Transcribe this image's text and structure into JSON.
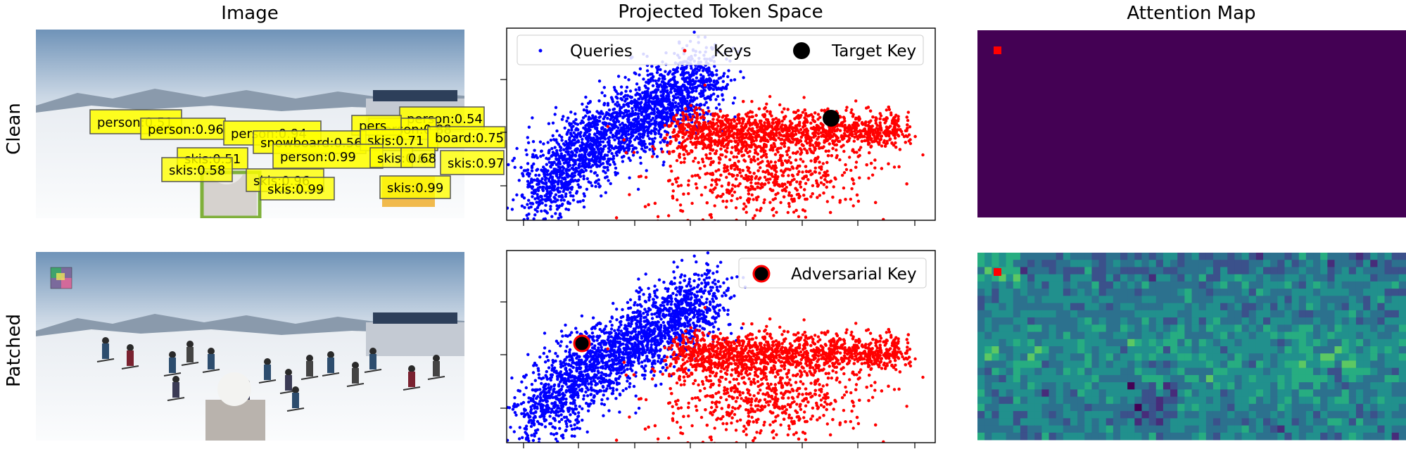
{
  "columns": {
    "image": "Image",
    "projected": "Projected Token Space",
    "attention": "Attention Map"
  },
  "rows": {
    "clean": "Clean",
    "patched": "Patched"
  },
  "legend": {
    "queries": "Queries",
    "keys": "Keys",
    "target_key": "Target Key",
    "adversarial_key": "Adversarial Key"
  },
  "detections": [
    "person:0.51",
    "person:0.96",
    "person:0.94",
    "person:0.54",
    "person:0.88",
    "pers",
    "snowboard:0.56",
    "skis:0.71",
    "board:0.75",
    "person:0.99",
    "skis:0.51",
    "skis:0.58",
    "skis:0.96",
    "skis:0.99",
    "skis:0.97",
    "skis:0.99",
    "skis:0.62",
    "0.68"
  ],
  "colors": {
    "queries": "#0000ff",
    "keys": "#ff0000",
    "target_key": "#000000",
    "attention_bg": "#440154",
    "attention_marker": "#ff0000"
  }
}
